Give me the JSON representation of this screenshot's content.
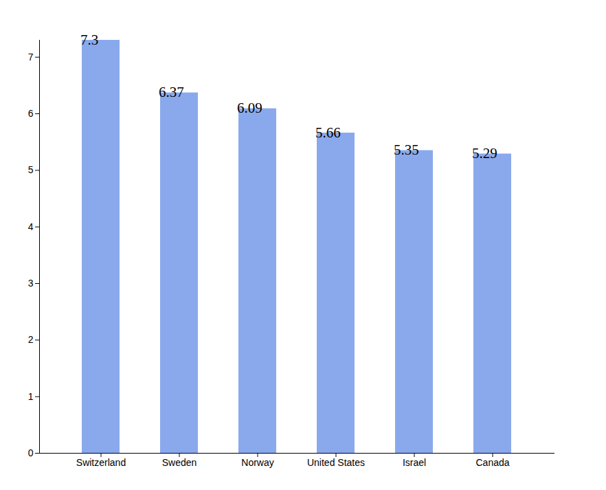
{
  "chart_data": {
    "type": "bar",
    "categories": [
      "Switzerland",
      "Sweden",
      "Norway",
      "United States",
      "Israel",
      "Canada"
    ],
    "values": [
      7.3,
      6.37,
      6.09,
      5.66,
      5.35,
      5.29
    ],
    "color": "#8aa9ec",
    "ylim": [
      0,
      7.3
    ],
    "yticks": [
      0,
      1,
      2,
      3,
      4,
      5,
      6,
      7
    ],
    "grid": false,
    "data_labels": true
  }
}
